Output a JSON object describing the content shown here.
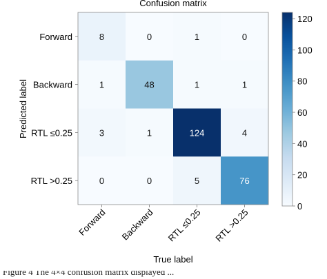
{
  "chart_data": {
    "type": "heatmap",
    "title": "Confusion matrix",
    "xlabel": "True label",
    "ylabel": "Predicted label",
    "x_categories": [
      "Forward",
      "Backward",
      "RTL ≤0.25",
      "RTL >0.25"
    ],
    "y_categories": [
      "Forward",
      "Backward",
      "RTL ≤0.25",
      "RTL >0.25"
    ],
    "matrix": [
      [
        8,
        0,
        1,
        0
      ],
      [
        1,
        48,
        1,
        1
      ],
      [
        3,
        1,
        124,
        4
      ],
      [
        0,
        0,
        5,
        76
      ]
    ],
    "colorbar": {
      "ticks": [
        0,
        20,
        40,
        60,
        80,
        100,
        120
      ],
      "range": [
        0,
        124
      ],
      "colormap": "Blues",
      "low_color": "#f7fbff",
      "high_color": "#08306b"
    }
  },
  "caption": "Figure 4 The 4×4 confusion matrix displayed ... ",
  "colors": {
    "text_dark": "#111111",
    "text_light": "#ffffff",
    "axis": "#777777"
  }
}
